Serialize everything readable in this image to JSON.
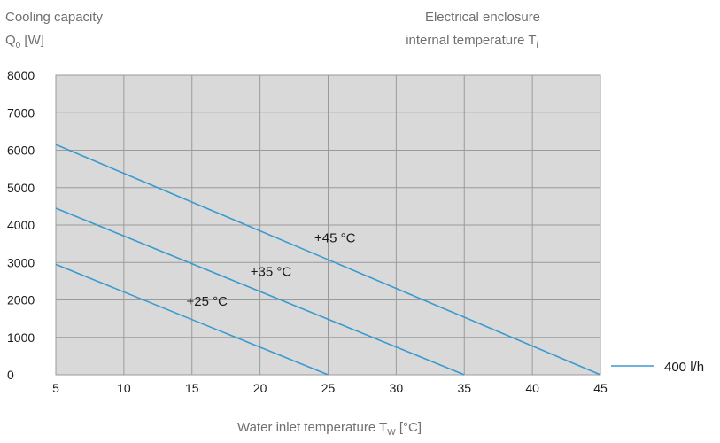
{
  "chart_data": {
    "type": "line",
    "ylabel_line1": "Cooling capacity",
    "ylabel_line2_main": "Q",
    "ylabel_line2_sub": "0",
    "ylabel_line2_unit": " [W]",
    "series_title_line1": "Electrical enclosure",
    "series_title_line2_main": "internal temperature T",
    "series_title_line2_sub": "i",
    "xlabel_main": "Water inlet temperature T",
    "xlabel_sub": "W",
    "xlabel_unit": " [°C]",
    "xlim": [
      5,
      45
    ],
    "ylim": [
      0,
      8000
    ],
    "xticks": [
      5,
      10,
      15,
      20,
      25,
      30,
      35,
      40,
      45
    ],
    "yticks": [
      0,
      1000,
      2000,
      3000,
      4000,
      5000,
      6000,
      7000,
      8000
    ],
    "grid": true,
    "legend": {
      "label": "400 l/h",
      "placement": "right",
      "color": "#3a9ad0"
    },
    "series": [
      {
        "name": "+25 °C",
        "x": [
          5,
          25
        ],
        "y": [
          2950,
          0
        ]
      },
      {
        "name": "+35 °C",
        "x": [
          5,
          35
        ],
        "y": [
          4450,
          0
        ]
      },
      {
        "name": "+45 °C",
        "x": [
          5,
          45
        ],
        "y": [
          6150,
          0
        ]
      }
    ]
  }
}
